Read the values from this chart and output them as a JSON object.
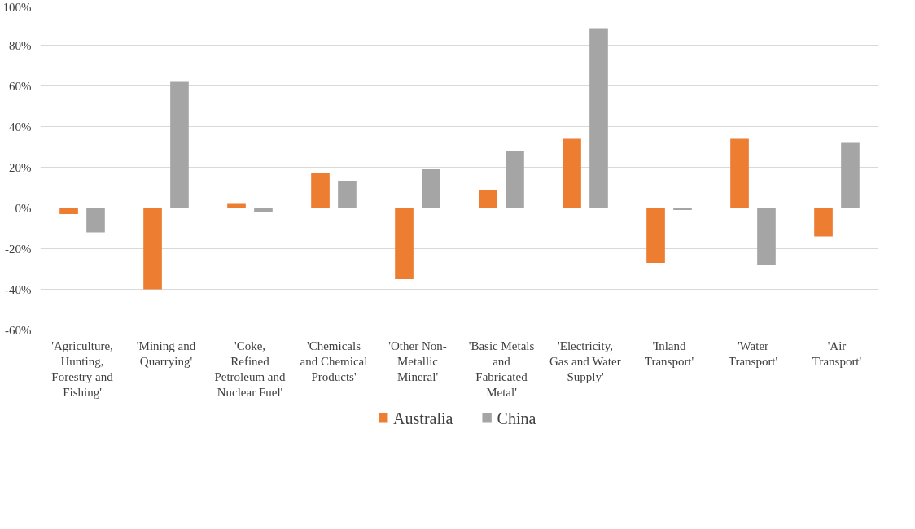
{
  "chart_data": {
    "type": "bar",
    "categories": [
      "'Agriculture, Hunting, Forestry and Fishing'",
      "'Mining and Quarrying'",
      "'Coke, Refined Petroleum and Nuclear Fuel'",
      "'Chemicals and Chemical Products'",
      "'Other Non-Metallic Mineral'",
      "'Basic Metals and Fabricated Metal'",
      "'Electricity, Gas and Water Supply'",
      "'Inland Transport'",
      "'Water Transport'",
      "'Air Transport'"
    ],
    "series": [
      {
        "name": "Australia",
        "color": "#ed7d31",
        "values": [
          -3,
          -40,
          2,
          17,
          -35,
          9,
          34,
          -27,
          34,
          -14
        ]
      },
      {
        "name": "China",
        "color": "#a5a5a5",
        "values": [
          -12,
          62,
          -2,
          13,
          19,
          28,
          88,
          -1,
          -28,
          32
        ]
      }
    ],
    "ylim": [
      -60,
      100
    ],
    "yticks": [
      {
        "value": -60,
        "label": "-60%"
      },
      {
        "value": -40,
        "label": "-40%"
      },
      {
        "value": -20,
        "label": "-20%"
      },
      {
        "value": 0,
        "label": "0%"
      },
      {
        "value": 20,
        "label": "20%"
      },
      {
        "value": 40,
        "label": "40%"
      },
      {
        "value": 60,
        "label": "60%"
      },
      {
        "value": 80,
        "label": "80%"
      },
      {
        "value": 100,
        "label": "100%"
      }
    ],
    "grid": "y",
    "legend": "bottom"
  }
}
